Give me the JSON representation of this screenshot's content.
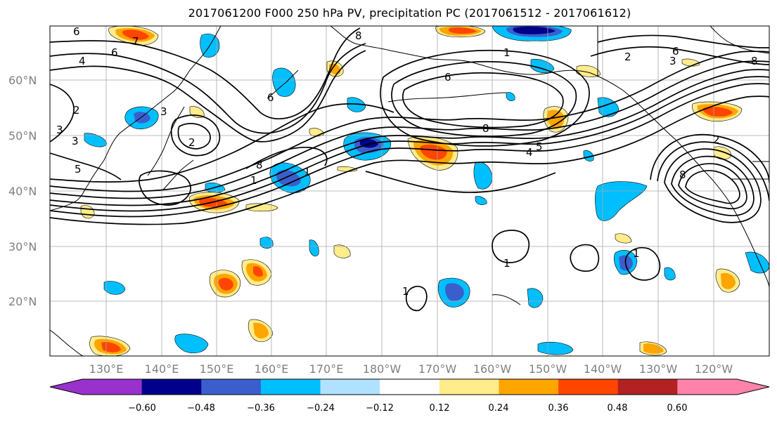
{
  "title": "2017061200 F000 250 hPa PV, precipitation PC (2017061512 - 2017061612)",
  "lat_labels": [
    "60°N",
    "50°N",
    "40°N",
    "30°N",
    "20°N"
  ],
  "lon_labels": [
    "130°E",
    "140°E",
    "150°E",
    "160°E",
    "170°E",
    "180°W",
    "170°W",
    "160°W",
    "150°W",
    "140°W",
    "130°W",
    "120°W"
  ],
  "colorbar": {
    "colors": [
      "#9932cc",
      "#00008b",
      "#3a5fcd",
      "#00bfff",
      "#b0e2ff",
      "#ffffff",
      "#ffec8b",
      "#ffa500",
      "#ff4500",
      "#b22222",
      "#ff82ab"
    ],
    "tick_labels": [
      "−0.60",
      "−0.48",
      "−0.36",
      "−0.24",
      "−0.12",
      "0.12",
      "0.24",
      "0.36",
      "0.48",
      "0.60"
    ]
  },
  "contour_labels": [
    {
      "text": "6"
    },
    {
      "text": "4"
    },
    {
      "text": "8"
    },
    {
      "text": "6"
    },
    {
      "text": "1"
    },
    {
      "text": "2"
    },
    {
      "text": "3"
    },
    {
      "text": "6"
    },
    {
      "text": "3"
    },
    {
      "text": "2"
    },
    {
      "text": "3"
    },
    {
      "text": "2"
    },
    {
      "text": "7"
    },
    {
      "text": "6"
    },
    {
      "text": "8"
    },
    {
      "text": "4"
    },
    {
      "text": "5"
    },
    {
      "text": "1"
    },
    {
      "text": "8"
    },
    {
      "text": "2"
    },
    {
      "text": "8"
    },
    {
      "text": "3"
    },
    {
      "text": "1"
    },
    {
      "text": "1"
    },
    {
      "text": "1"
    },
    {
      "text": "1"
    },
    {
      "text": "5"
    },
    {
      "text": "6"
    },
    {
      "text": "8"
    }
  ]
}
